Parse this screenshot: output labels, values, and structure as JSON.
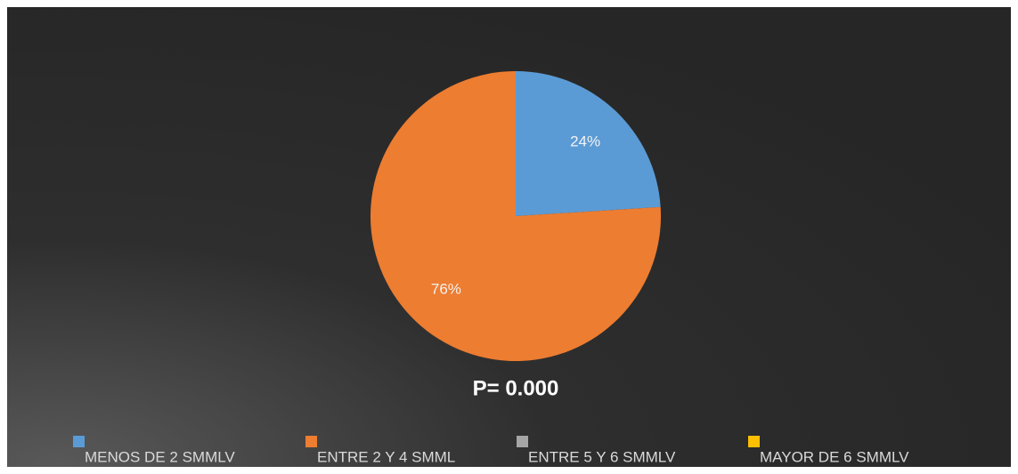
{
  "chart_data": {
    "type": "pie",
    "categories": [
      "MENOS DE 2 SMMLV",
      "ENTRE 2 Y 4 SMML",
      "ENTRE 5 Y 6 SMMLV",
      "MAYOR DE 6 SMMLV"
    ],
    "values": [
      24,
      76,
      0,
      0
    ],
    "value_labels": [
      "24%",
      "76%",
      null,
      null
    ],
    "colors": [
      "#5b9bd5",
      "#ed7d31",
      "#a5a5a5",
      "#ffc000"
    ],
    "annotation": "P= 0.000",
    "legend": "bottom"
  }
}
